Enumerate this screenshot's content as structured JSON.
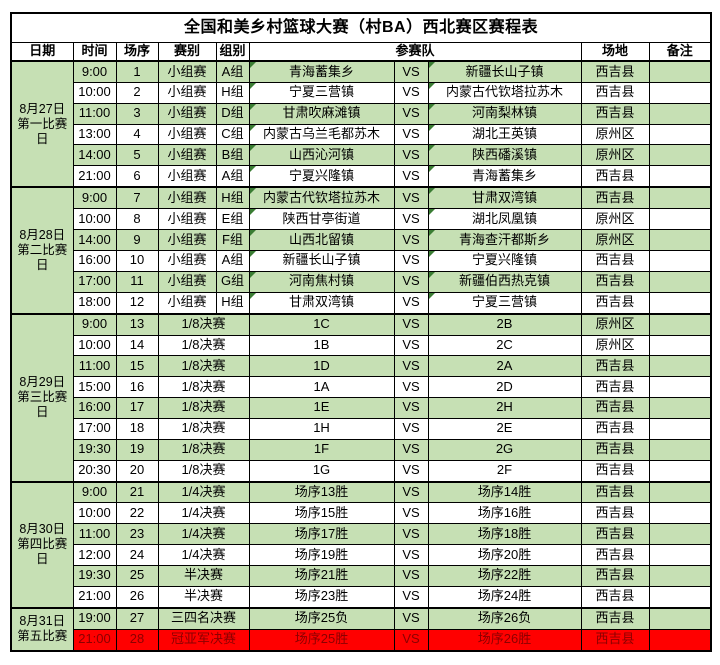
{
  "title": "全国和美乡村篮球大赛（村BA）西北赛区赛程表",
  "vs_label": "VS",
  "columns": {
    "date": "日期",
    "time": "时间",
    "match_no": "场序",
    "round": "赛别",
    "group": "组别",
    "teams": "参赛队",
    "venue": "场地",
    "notes": "备注"
  },
  "colors": {
    "row_green": "#C6E0B4",
    "row_red": "#FF0000",
    "red_row_text": "#8B0000",
    "comment_flag": "#3A7D33",
    "border": "#000000"
  },
  "sections": [
    {
      "date": "8月27日第一比赛日",
      "rows": [
        {
          "time": "9:00",
          "no": "1",
          "round": "小组赛",
          "group": "A组",
          "team1": "青海蓄集乡",
          "team2": "新疆长山子镇",
          "venue": "西吉县",
          "notes": "",
          "style": "green",
          "flag": true
        },
        {
          "time": "10:00",
          "no": "2",
          "round": "小组赛",
          "group": "H组",
          "team1": "宁夏三营镇",
          "team2": "内蒙古代钦塔拉苏木",
          "venue": "西吉县",
          "notes": "",
          "style": "white",
          "flag": true
        },
        {
          "time": "11:00",
          "no": "3",
          "round": "小组赛",
          "group": "D组",
          "team1": "甘肃吹麻滩镇",
          "team2": "河南梨林镇",
          "venue": "西吉县",
          "notes": "",
          "style": "green",
          "flag": true
        },
        {
          "time": "13:00",
          "no": "4",
          "round": "小组赛",
          "group": "C组",
          "team1": "内蒙古乌兰毛都苏木",
          "team2": "湖北王英镇",
          "venue": "原州区",
          "notes": "",
          "style": "white",
          "flag": true
        },
        {
          "time": "14:00",
          "no": "5",
          "round": "小组赛",
          "group": "B组",
          "team1": "山西沁河镇",
          "team2": "陕西磻溪镇",
          "venue": "原州区",
          "notes": "",
          "style": "green",
          "flag": true
        },
        {
          "time": "21:00",
          "no": "6",
          "round": "小组赛",
          "group": "A组",
          "team1": "宁夏兴隆镇",
          "team2": "青海蓄集乡",
          "venue": "西吉县",
          "notes": "",
          "style": "white",
          "flag": true
        }
      ]
    },
    {
      "date": "8月28日第二比赛日",
      "rows": [
        {
          "time": "9:00",
          "no": "7",
          "round": "小组赛",
          "group": "H组",
          "team1": "内蒙古代钦塔拉苏木",
          "team2": "甘肃双湾镇",
          "venue": "西吉县",
          "notes": "",
          "style": "green",
          "flag": true
        },
        {
          "time": "10:00",
          "no": "8",
          "round": "小组赛",
          "group": "E组",
          "team1": "陕西甘亭街道",
          "team2": "湖北凤凰镇",
          "venue": "原州区",
          "notes": "",
          "style": "white",
          "flag": true
        },
        {
          "time": "14:00",
          "no": "9",
          "round": "小组赛",
          "group": "F组",
          "team1": "山西北留镇",
          "team2": "青海查汗都斯乡",
          "venue": "原州区",
          "notes": "",
          "style": "green",
          "flag": true
        },
        {
          "time": "16:00",
          "no": "10",
          "round": "小组赛",
          "group": "A组",
          "team1": "新疆长山子镇",
          "team2": "宁夏兴隆镇",
          "venue": "西吉县",
          "notes": "",
          "style": "white",
          "flag": true
        },
        {
          "time": "17:00",
          "no": "11",
          "round": "小组赛",
          "group": "G组",
          "team1": "河南焦村镇",
          "team2": "新疆伯西热克镇",
          "venue": "西吉县",
          "notes": "",
          "style": "green",
          "flag": true
        },
        {
          "time": "18:00",
          "no": "12",
          "round": "小组赛",
          "group": "H组",
          "team1": "甘肃双湾镇",
          "team2": "宁夏三营镇",
          "venue": "西吉县",
          "notes": "",
          "style": "white",
          "flag": true
        }
      ]
    },
    {
      "date": "8月29日第三比赛日",
      "rows": [
        {
          "time": "9:00",
          "no": "13",
          "round": "1/8决赛",
          "group": null,
          "team1": "1C",
          "team2": "2B",
          "venue": "原州区",
          "notes": "",
          "style": "green",
          "flag": false
        },
        {
          "time": "10:00",
          "no": "14",
          "round": "1/8决赛",
          "group": null,
          "team1": "1B",
          "team2": "2C",
          "venue": "原州区",
          "notes": "",
          "style": "white",
          "flag": false
        },
        {
          "time": "11:00",
          "no": "15",
          "round": "1/8决赛",
          "group": null,
          "team1": "1D",
          "team2": "2A",
          "venue": "西吉县",
          "notes": "",
          "style": "green",
          "flag": false
        },
        {
          "time": "15:00",
          "no": "16",
          "round": "1/8决赛",
          "group": null,
          "team1": "1A",
          "team2": "2D",
          "venue": "西吉县",
          "notes": "",
          "style": "white",
          "flag": false
        },
        {
          "time": "16:00",
          "no": "17",
          "round": "1/8决赛",
          "group": null,
          "team1": "1E",
          "team2": "2H",
          "venue": "西吉县",
          "notes": "",
          "style": "green",
          "flag": false
        },
        {
          "time": "17:00",
          "no": "18",
          "round": "1/8决赛",
          "group": null,
          "team1": "1H",
          "team2": "2E",
          "venue": "西吉县",
          "notes": "",
          "style": "white",
          "flag": false
        },
        {
          "time": "19:30",
          "no": "19",
          "round": "1/8决赛",
          "group": null,
          "team1": "1F",
          "team2": "2G",
          "venue": "西吉县",
          "notes": "",
          "style": "green",
          "flag": false
        },
        {
          "time": "20:30",
          "no": "20",
          "round": "1/8决赛",
          "group": null,
          "team1": "1G",
          "team2": "2F",
          "venue": "西吉县",
          "notes": "",
          "style": "white",
          "flag": false
        }
      ]
    },
    {
      "date": "8月30日第四比赛日",
      "rows": [
        {
          "time": "9:00",
          "no": "21",
          "round": "1/4决赛",
          "group": null,
          "team1": "场序13胜",
          "team2": "场序14胜",
          "venue": "西吉县",
          "notes": "",
          "style": "green",
          "flag": false
        },
        {
          "time": "10:00",
          "no": "22",
          "round": "1/4决赛",
          "group": null,
          "team1": "场序15胜",
          "team2": "场序16胜",
          "venue": "西吉县",
          "notes": "",
          "style": "white",
          "flag": false
        },
        {
          "time": "11:00",
          "no": "23",
          "round": "1/4决赛",
          "group": null,
          "team1": "场序17胜",
          "team2": "场序18胜",
          "venue": "西吉县",
          "notes": "",
          "style": "green",
          "flag": false
        },
        {
          "time": "12:00",
          "no": "24",
          "round": "1/4决赛",
          "group": null,
          "team1": "场序19胜",
          "team2": "场序20胜",
          "venue": "西吉县",
          "notes": "",
          "style": "white",
          "flag": false
        },
        {
          "time": "19:30",
          "no": "25",
          "round": "半决赛",
          "group": null,
          "team1": "场序21胜",
          "team2": "场序22胜",
          "venue": "西吉县",
          "notes": "",
          "style": "green",
          "flag": false
        },
        {
          "time": "21:00",
          "no": "26",
          "round": "半决赛",
          "group": null,
          "team1": "场序23胜",
          "team2": "场序24胜",
          "venue": "西吉县",
          "notes": "",
          "style": "white",
          "flag": false
        }
      ]
    },
    {
      "date": "8月31日第五比赛",
      "rows": [
        {
          "time": "19:00",
          "no": "27",
          "round": "三四名决赛",
          "group": null,
          "team1": "场序25负",
          "team2": "场序26负",
          "venue": "西吉县",
          "notes": "",
          "style": "green",
          "flag": false
        },
        {
          "time": "21:00",
          "no": "28",
          "round": "冠亚军决赛",
          "group": null,
          "team1": "场序25胜",
          "team2": "场序26胜",
          "venue": "西吉县",
          "notes": "",
          "style": "red",
          "flag": false
        }
      ]
    }
  ]
}
